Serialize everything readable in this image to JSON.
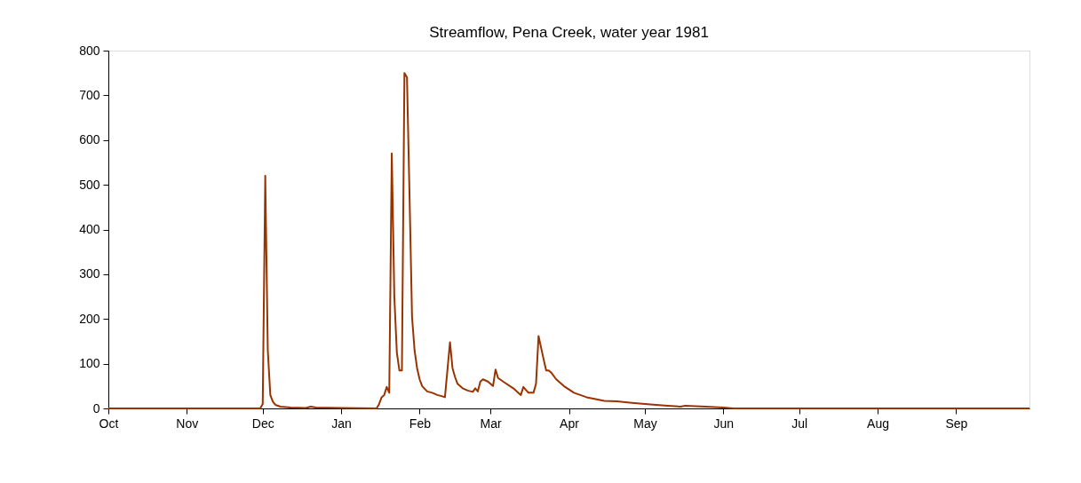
{
  "chart_data": {
    "type": "line",
    "title": "Streamflow, Pena Creek, water year 1981",
    "x": [
      "1980-10-01",
      "1980-11-30",
      "1980-12-01",
      "1980-12-02",
      "1980-12-03",
      "1980-12-04",
      "1980-12-05",
      "1980-12-06",
      "1980-12-08",
      "1980-12-12",
      "1980-12-18",
      "1980-12-20",
      "1980-12-22",
      "1981-01-01",
      "1981-01-15",
      "1981-01-16",
      "1981-01-17",
      "1981-01-18",
      "1981-01-19",
      "1981-01-20",
      "1981-01-21",
      "1981-01-22",
      "1981-01-23",
      "1981-01-24",
      "1981-01-25",
      "1981-01-26",
      "1981-01-27",
      "1981-01-28",
      "1981-01-29",
      "1981-01-30",
      "1981-01-31",
      "1981-02-01",
      "1981-02-02",
      "1981-02-04",
      "1981-02-06",
      "1981-02-08",
      "1981-02-10",
      "1981-02-11",
      "1981-02-13",
      "1981-02-14",
      "1981-02-15",
      "1981-02-16",
      "1981-02-18",
      "1981-02-20",
      "1981-02-22",
      "1981-02-23",
      "1981-02-24",
      "1981-02-25",
      "1981-02-26",
      "1981-02-28",
      "1981-03-02",
      "1981-03-03",
      "1981-03-04",
      "1981-03-06",
      "1981-03-10",
      "1981-03-13",
      "1981-03-14",
      "1981-03-16",
      "1981-03-18",
      "1981-03-19",
      "1981-03-20",
      "1981-03-22",
      "1981-03-23",
      "1981-03-24",
      "1981-03-25",
      "1981-03-27",
      "1981-03-30",
      "1981-04-03",
      "1981-04-08",
      "1981-04-15",
      "1981-04-20",
      "1981-04-25",
      "1981-05-01",
      "1981-05-10",
      "1981-05-15",
      "1981-05-17",
      "1981-05-25",
      "1981-06-01",
      "1981-06-05",
      "1981-09-30"
    ],
    "series": [
      {
        "color": "#993300",
        "values": [
          0,
          0,
          10,
          520,
          130,
          30,
          15,
          8,
          4,
          2,
          1,
          4,
          2,
          1,
          0,
          10,
          25,
          30,
          48,
          35,
          570,
          250,
          125,
          85,
          85,
          750,
          740,
          480,
          205,
          130,
          90,
          65,
          50,
          38,
          35,
          30,
          27,
          25,
          148,
          90,
          70,
          55,
          45,
          40,
          37,
          45,
          38,
          60,
          65,
          60,
          50,
          87,
          68,
          60,
          45,
          30,
          48,
          35,
          35,
          55,
          162,
          110,
          85,
          85,
          80,
          65,
          50,
          35,
          25,
          17,
          16,
          13,
          10,
          6,
          4,
          6,
          4,
          2,
          0,
          0
        ]
      }
    ],
    "xlim": [
      "1980-10-01",
      "1981-09-30"
    ],
    "xticks": [
      {
        "value": "1980-10-01",
        "label": "Oct"
      },
      {
        "value": "1980-11-01",
        "label": "Nov"
      },
      {
        "value": "1980-12-01",
        "label": "Dec"
      },
      {
        "value": "1981-01-01",
        "label": "Jan"
      },
      {
        "value": "1981-02-01",
        "label": "Feb"
      },
      {
        "value": "1981-03-01",
        "label": "Mar"
      },
      {
        "value": "1981-04-01",
        "label": "Apr"
      },
      {
        "value": "1981-05-01",
        "label": "May"
      },
      {
        "value": "1981-06-01",
        "label": "Jun"
      },
      {
        "value": "1981-07-01",
        "label": "Jul"
      },
      {
        "value": "1981-08-01",
        "label": "Aug"
      },
      {
        "value": "1981-09-01",
        "label": "Sep"
      }
    ],
    "ylim": [
      0,
      800
    ],
    "yticks": [
      0,
      100,
      200,
      300,
      400,
      500,
      600,
      700,
      800
    ],
    "grid": false,
    "marker": "none",
    "line_style": "solid"
  }
}
